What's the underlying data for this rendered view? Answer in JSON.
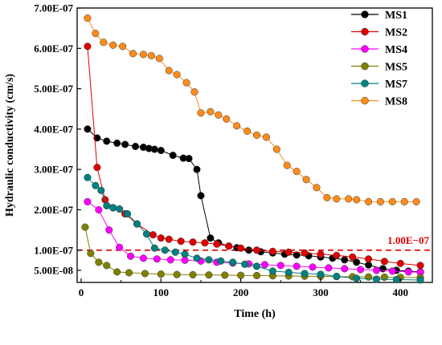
{
  "chart_data": {
    "type": "line",
    "xlabel": "Time (h)",
    "ylabel": "Hydraulic conductivity (cm/s)",
    "xlim": [
      -5,
      440
    ],
    "ylim": [
      2e-08,
      7e-07
    ],
    "x_ticks": [
      0,
      100,
      200,
      300,
      400
    ],
    "x_tick_labels": [
      "0",
      "100",
      "200",
      "300",
      "400"
    ],
    "y_ticks": [
      5e-08,
      1e-07,
      2e-07,
      3e-07,
      4e-07,
      5e-07,
      6e-07,
      7e-07
    ],
    "y_tick_labels": [
      "5.00E-08",
      "1.00E-07",
      "2.00E-07",
      "3.00E-07",
      "4.00E-07",
      "5.00E-07",
      "6.00E-07",
      "7.00E-07"
    ],
    "legend_position": "top-right",
    "grid": false,
    "reference_line": {
      "y": 1e-07,
      "label": "1.00E−07",
      "color": "#e00000"
    },
    "series": [
      {
        "name": "MS1",
        "color": "#000000",
        "x": [
          8,
          20,
          32,
          45,
          55,
          68,
          78,
          85,
          92,
          100,
          115,
          128,
          135,
          145,
          150,
          162,
          172,
          185,
          195,
          210,
          225,
          240,
          255,
          270,
          285,
          300,
          315,
          330,
          345,
          360,
          378,
          395,
          410,
          425
        ],
        "y": [
          4e-07,
          3.78e-07,
          3.7e-07,
          3.65e-07,
          3.62e-07,
          3.57e-07,
          3.55e-07,
          3.52e-07,
          3.5e-07,
          3.47e-07,
          3.35e-07,
          3.28e-07,
          3.27e-07,
          3e-07,
          2.35e-07,
          1.3e-07,
          1.18e-07,
          1.1e-07,
          1.06e-07,
          1e-07,
          9.6e-08,
          9.3e-08,
          9e-08,
          8.8e-08,
          8.6e-08,
          8.3e-08,
          8e-08,
          7.6e-08,
          7e-08,
          6.3e-08,
          5.4e-08,
          5e-08,
          4.8e-08,
          4.6e-08
        ]
      },
      {
        "name": "MS2",
        "color": "#e00000",
        "x": [
          8,
          20,
          30,
          40,
          55,
          70,
          90,
          100,
          110,
          125,
          140,
          155,
          170,
          185,
          200,
          220,
          240,
          260,
          280,
          300,
          320,
          340,
          360,
          380,
          400,
          425
        ],
        "y": [
          6.05e-07,
          3.05e-07,
          2.25e-07,
          2.05e-07,
          1.9e-07,
          1.65e-07,
          1.38e-07,
          1.3e-07,
          1.27e-07,
          1.22e-07,
          1.2e-07,
          1.18e-07,
          1.15e-07,
          1.1e-07,
          1.05e-07,
          1e-07,
          9.7e-08,
          9.5e-08,
          9.3e-08,
          9e-08,
          8.7e-08,
          8.3e-08,
          7.8e-08,
          7.2e-08,
          6.7e-08,
          6.2e-08
        ]
      },
      {
        "name": "MS4",
        "color": "#ff00ff",
        "x": [
          8,
          22,
          35,
          48,
          62,
          78,
          95,
          112,
          130,
          150,
          170,
          190,
          210,
          230,
          250,
          270,
          290,
          310,
          330,
          350,
          370,
          390,
          410,
          425
        ],
        "y": [
          2.2e-07,
          2e-07,
          1.5e-07,
          1.07e-07,
          8.5e-08,
          8e-08,
          7.8e-08,
          7.6e-08,
          7.5e-08,
          7.3e-08,
          7e-08,
          6.8e-08,
          6.6e-08,
          6.4e-08,
          6.2e-08,
          6e-08,
          5.8e-08,
          5.6e-08,
          5.4e-08,
          5.2e-08,
          5e-08,
          4.8e-08,
          4.6e-08,
          4.5e-08
        ]
      },
      {
        "name": "MS5",
        "color": "#808000",
        "x": [
          5,
          12,
          22,
          32,
          45,
          60,
          80,
          100,
          120,
          140,
          160,
          180,
          200,
          220,
          240,
          260,
          280,
          300,
          320,
          340,
          360,
          380,
          400,
          425
        ],
        "y": [
          1.57e-07,
          9.2e-08,
          7e-08,
          6.2e-08,
          4.6e-08,
          4.4e-08,
          4.2e-08,
          4.05e-08,
          3.95e-08,
          3.9e-08,
          3.85e-08,
          3.8e-08,
          3.75e-08,
          3.7e-08,
          3.65e-08,
          3.6e-08,
          3.55e-08,
          3.5e-08,
          3.45e-08,
          3.4e-08,
          3.35e-08,
          3.3e-08,
          3.25e-08,
          3.2e-08
        ]
      },
      {
        "name": "MS7",
        "color": "#008080",
        "x": [
          8,
          18,
          25,
          32,
          40,
          48,
          58,
          70,
          82,
          92,
          105,
          118,
          130,
          145,
          160,
          175,
          190,
          205,
          220,
          240,
          260,
          280,
          300,
          320,
          345,
          370,
          395,
          425
        ],
        "y": [
          2.8e-07,
          2.6e-07,
          2.48e-07,
          2.1e-07,
          2.05e-07,
          2.02e-07,
          1.9e-07,
          1.65e-07,
          1.4e-07,
          1.05e-07,
          1e-07,
          9.5e-08,
          9e-08,
          8e-08,
          7.6e-08,
          7.3e-08,
          7e-08,
          6.5e-08,
          6e-08,
          4.8e-08,
          4.5e-08,
          4.2e-08,
          4e-08,
          3.5e-08,
          3e-08,
          2.8e-08,
          2.7e-08,
          2.6e-08
        ]
      },
      {
        "name": "MS8",
        "color": "#ff8c1a",
        "x": [
          8,
          18,
          28,
          40,
          52,
          65,
          78,
          88,
          98,
          110,
          120,
          132,
          142,
          150,
          162,
          172,
          182,
          195,
          208,
          220,
          232,
          245,
          258,
          270,
          282,
          295,
          308,
          320,
          335,
          345,
          360,
          375,
          390,
          405,
          420
        ],
        "y": [
          6.75e-07,
          6.37e-07,
          6.15e-07,
          6.08e-07,
          6.05e-07,
          5.87e-07,
          5.85e-07,
          5.82e-07,
          5.75e-07,
          5.45e-07,
          5.35e-07,
          5.15e-07,
          4.92e-07,
          4.4e-07,
          4.43e-07,
          4.35e-07,
          4.25e-07,
          4.08e-07,
          3.95e-07,
          3.85e-07,
          3.8e-07,
          3.5e-07,
          3.1e-07,
          2.95e-07,
          2.75e-07,
          2.55e-07,
          2.3e-07,
          2.27e-07,
          2.27e-07,
          2.25e-07,
          2.2e-07,
          2.2e-07,
          2.2e-07,
          2.2e-07,
          2.2e-07
        ]
      }
    ]
  }
}
